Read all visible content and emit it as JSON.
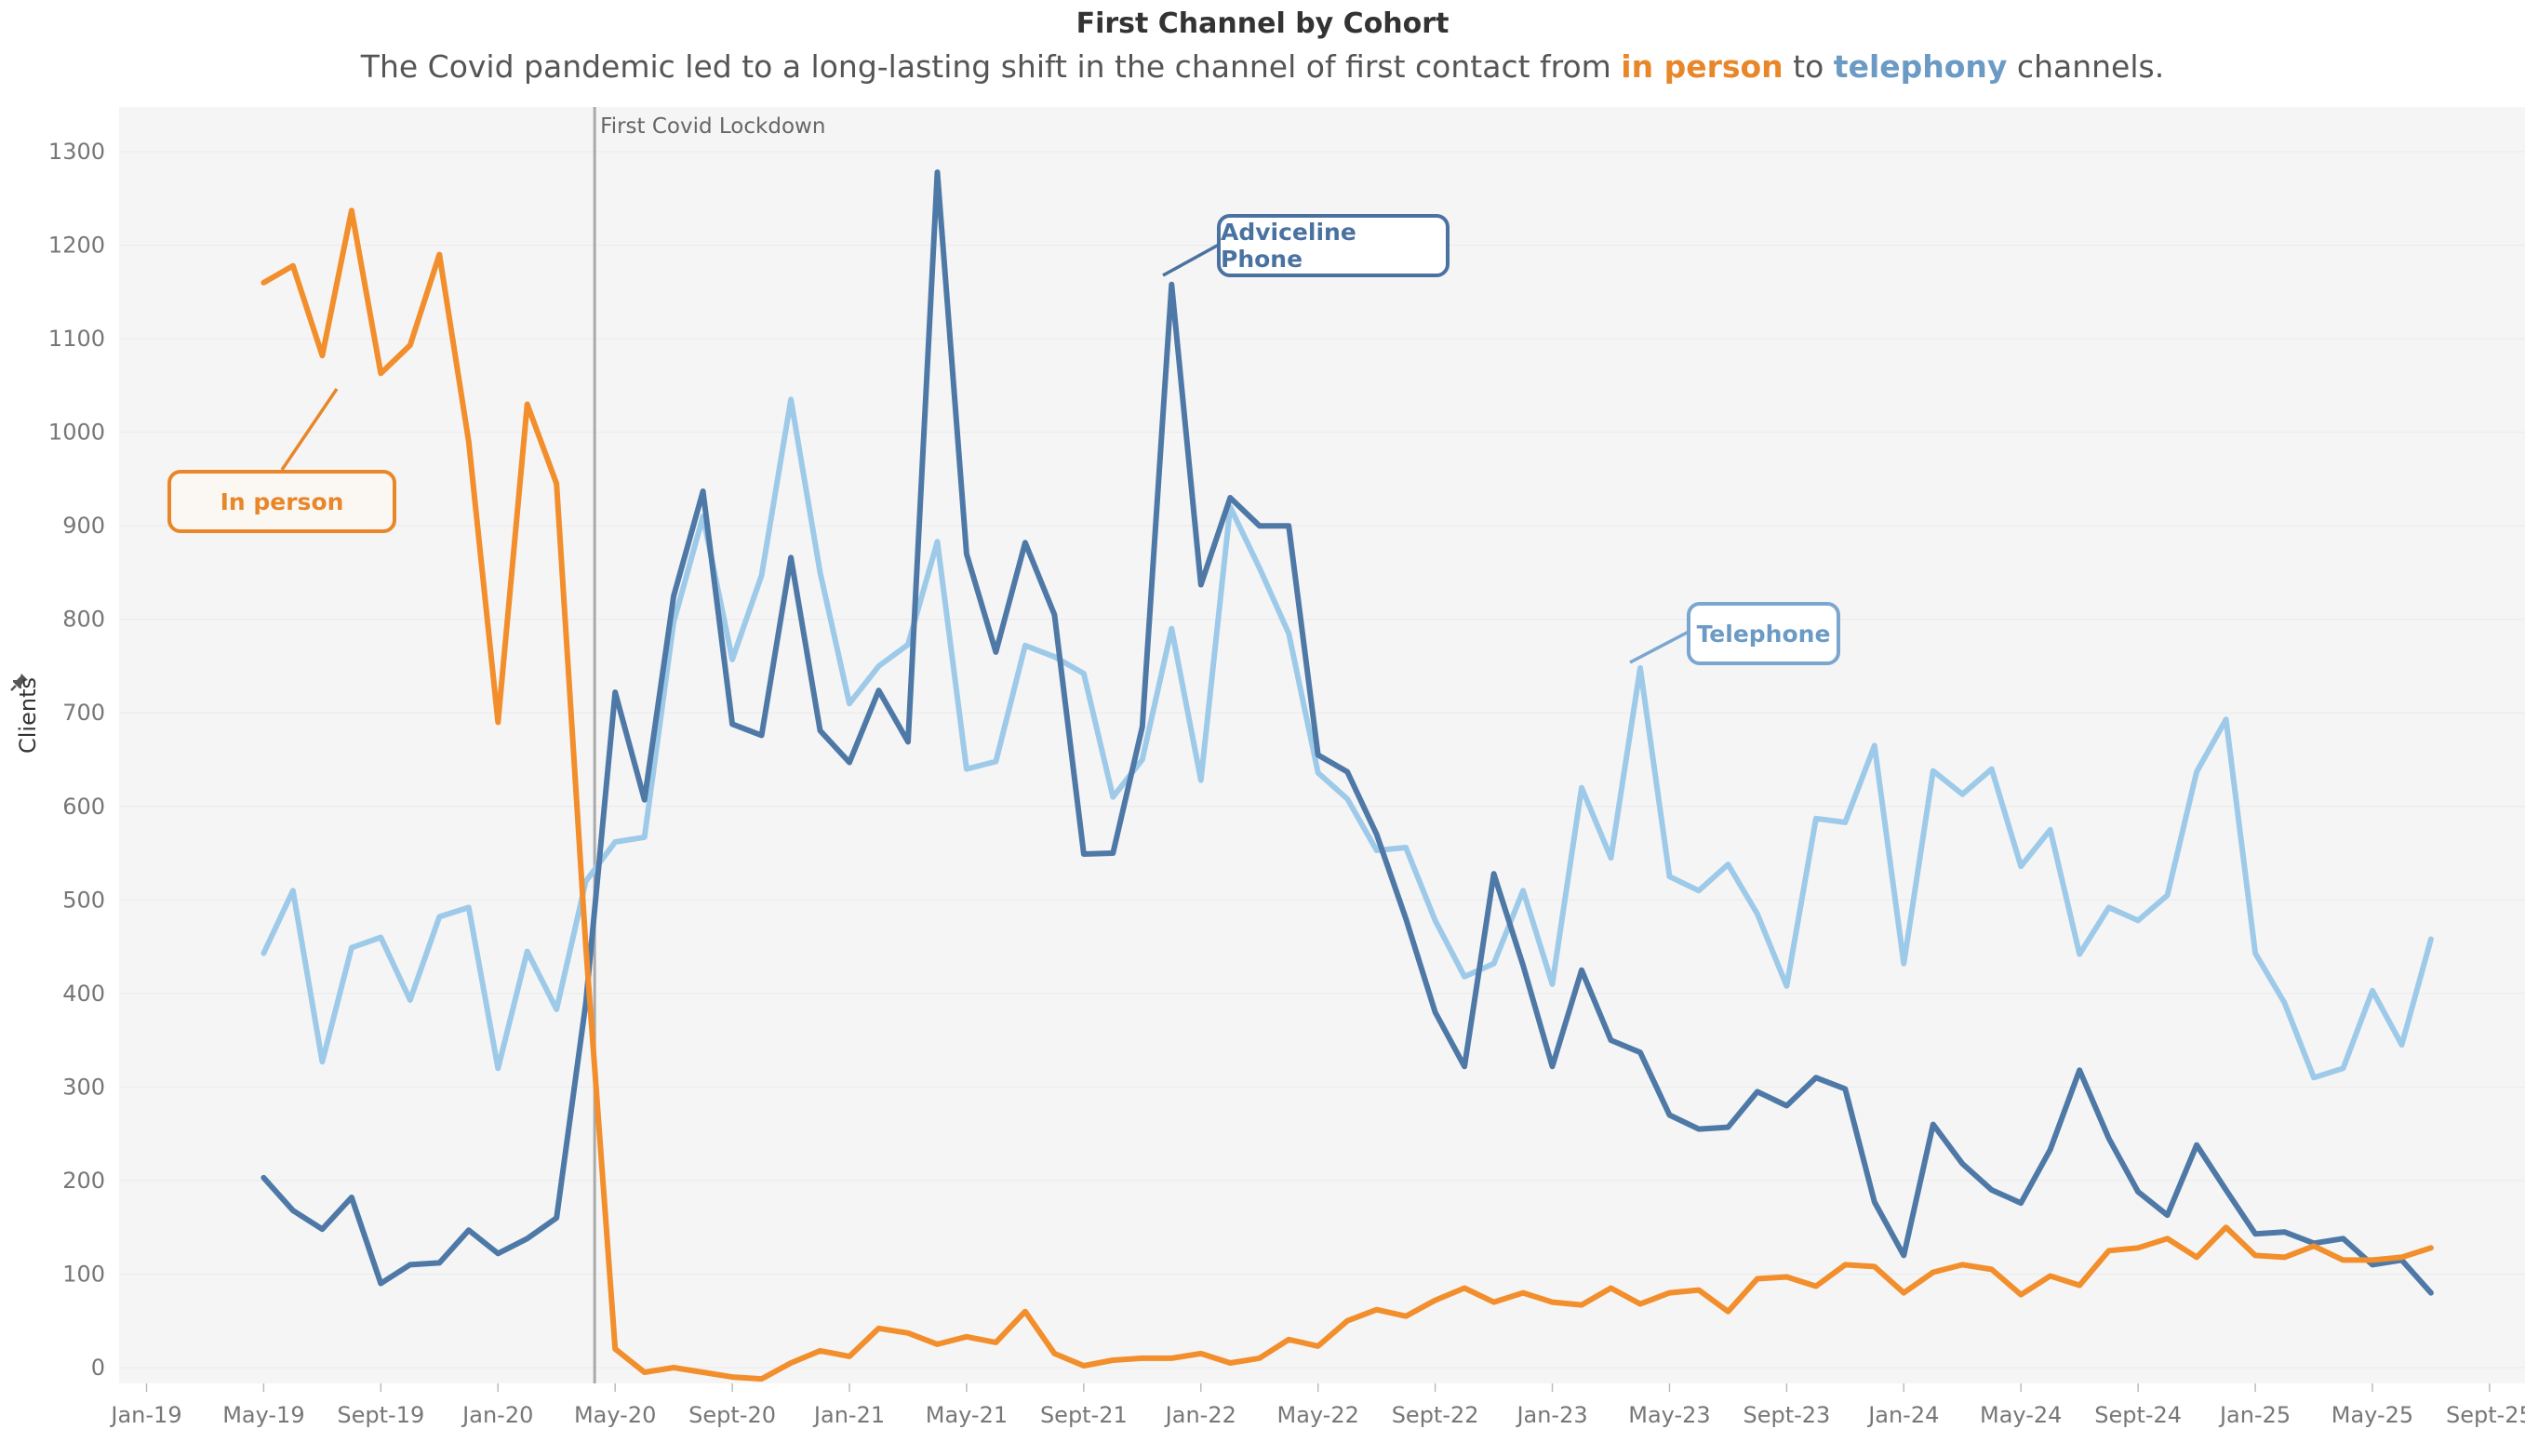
{
  "chart_data": {
    "type": "line",
    "title": "First Channel by Cohort",
    "subtitle": {
      "prefix": "The Covid pandemic led to a long-lasting shift in the channel of first contact from ",
      "highlight1": "in person",
      "middle": " to ",
      "highlight2": "telephony",
      "suffix": " channels."
    },
    "ylabel": "Clients",
    "xlabel": "",
    "ylim": [
      -15,
      1345
    ],
    "y_ticks": [
      0,
      100,
      200,
      300,
      400,
      500,
      600,
      700,
      800,
      900,
      1000,
      1100,
      1200,
      1300
    ],
    "x_tick_labels": [
      "Jan-19",
      "May-19",
      "Sept-19",
      "Jan-20",
      "May-20",
      "Sept-20",
      "Jan-21",
      "May-21",
      "Sept-21",
      "Jan-22",
      "May-22",
      "Sept-22",
      "Jan-23",
      "May-23",
      "Sept-23",
      "Jan-24",
      "May-24",
      "Sept-24",
      "Jan-25",
      "May-25",
      "Sept-25"
    ],
    "x_start_month_index": 4,
    "grid": true,
    "annotation": {
      "label": "First Covid Lockdown",
      "month_index": 15.3
    },
    "series": [
      {
        "name": "In person",
        "color": "#f28e2b",
        "values": [
          1160,
          1178,
          1082,
          1237,
          1063,
          1093,
          1190,
          990,
          690,
          1030,
          945,
          450,
          20,
          -5,
          0,
          -5,
          -10,
          -12,
          5,
          18,
          12,
          42,
          37,
          25,
          33,
          27,
          60,
          15,
          2,
          8,
          10,
          10,
          15,
          5,
          10,
          30,
          23,
          50,
          62,
          55,
          72,
          85,
          70,
          80,
          70,
          67,
          85,
          68,
          80,
          83,
          60,
          95,
          97,
          87,
          110,
          108,
          80,
          102,
          110,
          105,
          78,
          98,
          88,
          125,
          128,
          138,
          118,
          150,
          120,
          118,
          130,
          115,
          115,
          118,
          128
        ]
      },
      {
        "name": "Adviceline Phone",
        "color": "#4e79a7",
        "values": [
          203,
          168,
          148,
          182,
          90,
          110,
          112,
          147,
          122,
          138,
          160,
          390,
          722,
          607,
          825,
          937,
          688,
          676,
          866,
          681,
          647,
          724,
          669,
          1278,
          870,
          765,
          882,
          805,
          549,
          550,
          685,
          1158,
          837,
          930,
          900,
          900,
          655,
          637,
          570,
          480,
          380,
          322,
          528,
          430,
          322,
          425,
          350,
          337,
          270,
          255,
          257,
          295,
          280,
          310,
          298,
          177,
          120,
          260,
          218,
          190,
          176,
          233,
          318,
          245,
          188,
          163,
          238,
          190,
          143,
          145,
          133,
          138,
          110,
          115,
          80
        ]
      },
      {
        "name": "Telephone",
        "color": "#9ecae9",
        "values": [
          443,
          510,
          327,
          449,
          460,
          393,
          482,
          492,
          320,
          445,
          383,
          520,
          562,
          567,
          797,
          910,
          757,
          847,
          1035,
          850,
          710,
          750,
          773,
          883,
          640,
          648,
          772,
          760,
          742,
          610,
          650,
          790,
          628,
          920,
          855,
          785,
          636,
          608,
          553,
          556,
          478,
          418,
          432,
          510,
          410,
          620,
          545,
          748,
          525,
          510,
          538,
          485,
          408,
          587,
          583,
          665,
          432,
          638,
          613,
          640,
          536,
          575,
          442,
          492,
          478,
          505,
          637,
          693,
          443,
          390,
          310,
          320,
          403,
          345,
          458
        ]
      }
    ],
    "callouts": {
      "in_person": "In person",
      "adviceline": "Adviceline Phone",
      "telephone": "Telephone"
    },
    "colors": {
      "in_person": "#f28e2b",
      "adviceline": "#4e79a7",
      "telephone": "#9ecae9",
      "plot_bg": "#f5f5f5"
    }
  }
}
